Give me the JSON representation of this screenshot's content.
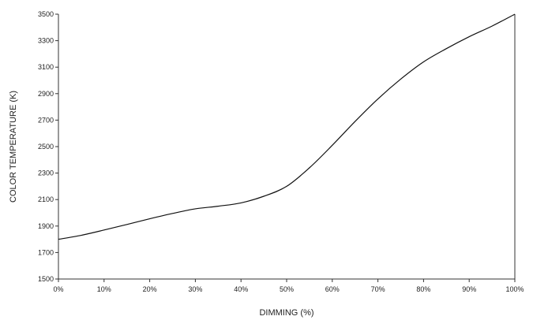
{
  "chart_data": {
    "type": "line",
    "title": "",
    "xlabel": "DIMMING (%)",
    "ylabel": "COLOR TEMPERATURE (K)",
    "xlim": [
      0,
      100
    ],
    "ylim": [
      1500,
      3500
    ],
    "x_ticks": [
      "0%",
      "10%",
      "20%",
      "30%",
      "40%",
      "50%",
      "60%",
      "70%",
      "80%",
      "90%",
      "100%"
    ],
    "y_ticks": [
      "1500",
      "1700",
      "1900",
      "2100",
      "2300",
      "2500",
      "2700",
      "2900",
      "3100",
      "3300",
      "3500"
    ],
    "grid": false,
    "series": [
      {
        "x": [
          0,
          5,
          10,
          15,
          20,
          25,
          30,
          35,
          40,
          45,
          50,
          55,
          60,
          65,
          70,
          75,
          80,
          85,
          90,
          95,
          100
        ],
        "y": [
          1800,
          1830,
          1870,
          1912,
          1955,
          1995,
          2030,
          2050,
          2075,
          2125,
          2200,
          2340,
          2510,
          2690,
          2860,
          3010,
          3140,
          3240,
          3330,
          3410,
          3500
        ]
      }
    ]
  }
}
